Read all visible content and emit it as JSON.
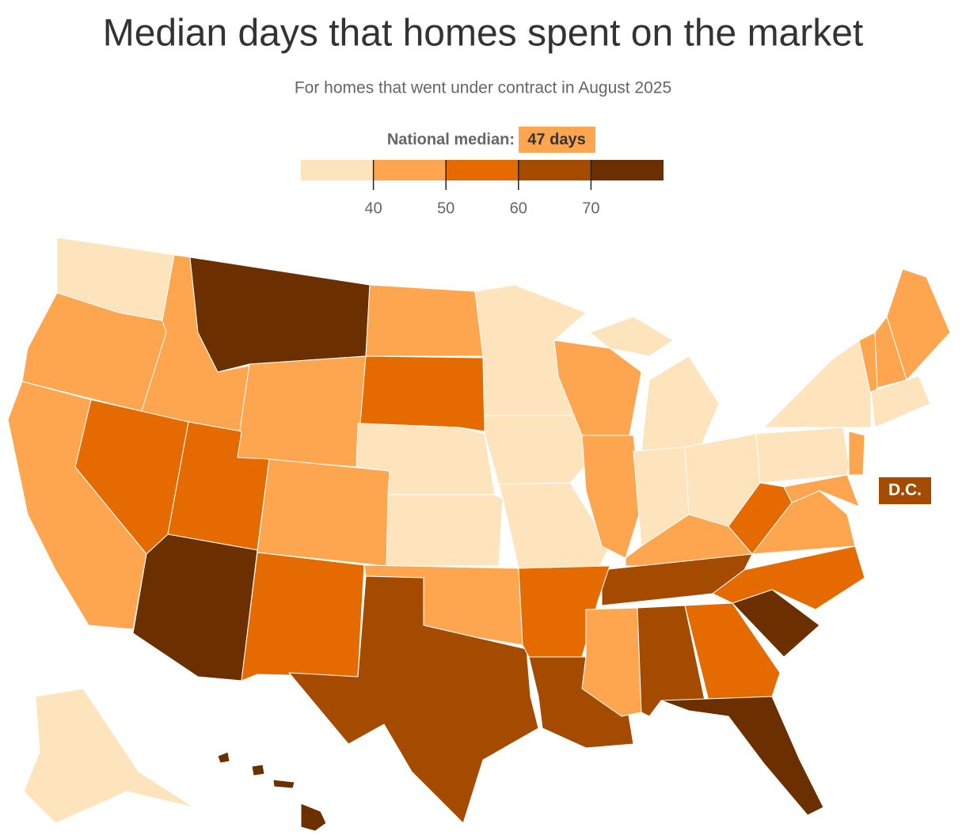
{
  "title": "Median days that homes spent on the market",
  "subtitle": "For homes that went under contract in August 2025",
  "legend": {
    "label": "National median:",
    "highlight": "47 days",
    "highlight_color": "#fda54f",
    "xlim": [
      30,
      80
    ],
    "ticks": [
      40,
      50,
      60,
      70
    ],
    "colors": [
      "#fde4bd",
      "#fda54f",
      "#e56b00",
      "#a44b00",
      "#6b2f00"
    ]
  },
  "dc": {
    "label": "D.C.",
    "color": "#a44b00"
  },
  "regions": [
    {
      "color": "#fde4bd"
    },
    {
      "color": "#fda54f"
    },
    {
      "color": "#fda54f"
    },
    {
      "color": "#fda54f"
    },
    {
      "color": "#e56b00"
    },
    {
      "color": "#6b2f00"
    },
    {
      "color": "#fda54f"
    },
    {
      "color": "#e56b00"
    },
    {
      "color": "#6b2f00"
    },
    {
      "color": "#fda54f"
    },
    {
      "color": "#e56b00"
    },
    {
      "color": "#fda54f"
    },
    {
      "color": "#e56b00"
    },
    {
      "color": "#fde4bd"
    },
    {
      "color": "#fde4bd"
    },
    {
      "color": "#fda54f"
    },
    {
      "color": "#a44b00"
    },
    {
      "color": "#fde4bd"
    },
    {
      "color": "#fde4bd"
    },
    {
      "color": "#fde4bd"
    },
    {
      "color": "#fda54f"
    },
    {
      "color": "#fda54f"
    },
    {
      "color": "#fde4bd"
    },
    {
      "color": "#fde4bd"
    },
    {
      "color": "#fde4bd"
    },
    {
      "color": "#fda54f"
    },
    {
      "color": "#a44b00"
    },
    {
      "color": "#e56b00"
    },
    {
      "color": "#a44b00"
    },
    {
      "color": "#fda54f"
    },
    {
      "color": "#a44b00"
    },
    {
      "color": "#e56b00"
    },
    {
      "color": "#6b2f00"
    },
    {
      "color": "#6b2f00"
    },
    {
      "color": "#e56b00"
    },
    {
      "color": "#fda54f"
    },
    {
      "color": "#e56b00"
    },
    {
      "color": "#fde4bd"
    },
    {
      "color": "#fde4bd"
    },
    {
      "color": "#fda54f"
    },
    {
      "color": "#fda54f"
    },
    {
      "color": "#fda54f"
    },
    {
      "color": "#fda54f"
    },
    {
      "color": "#fda54f"
    },
    {
      "color": "#fde4bd"
    },
    {
      "color": "#fde4bd"
    },
    {
      "color": "#fde4bd"
    },
    {
      "color": "#6b2f00"
    },
    {
      "color": "#6b2f00"
    },
    {
      "color": "#6b2f00"
    },
    {
      "color": "#6b2f00"
    }
  ]
}
